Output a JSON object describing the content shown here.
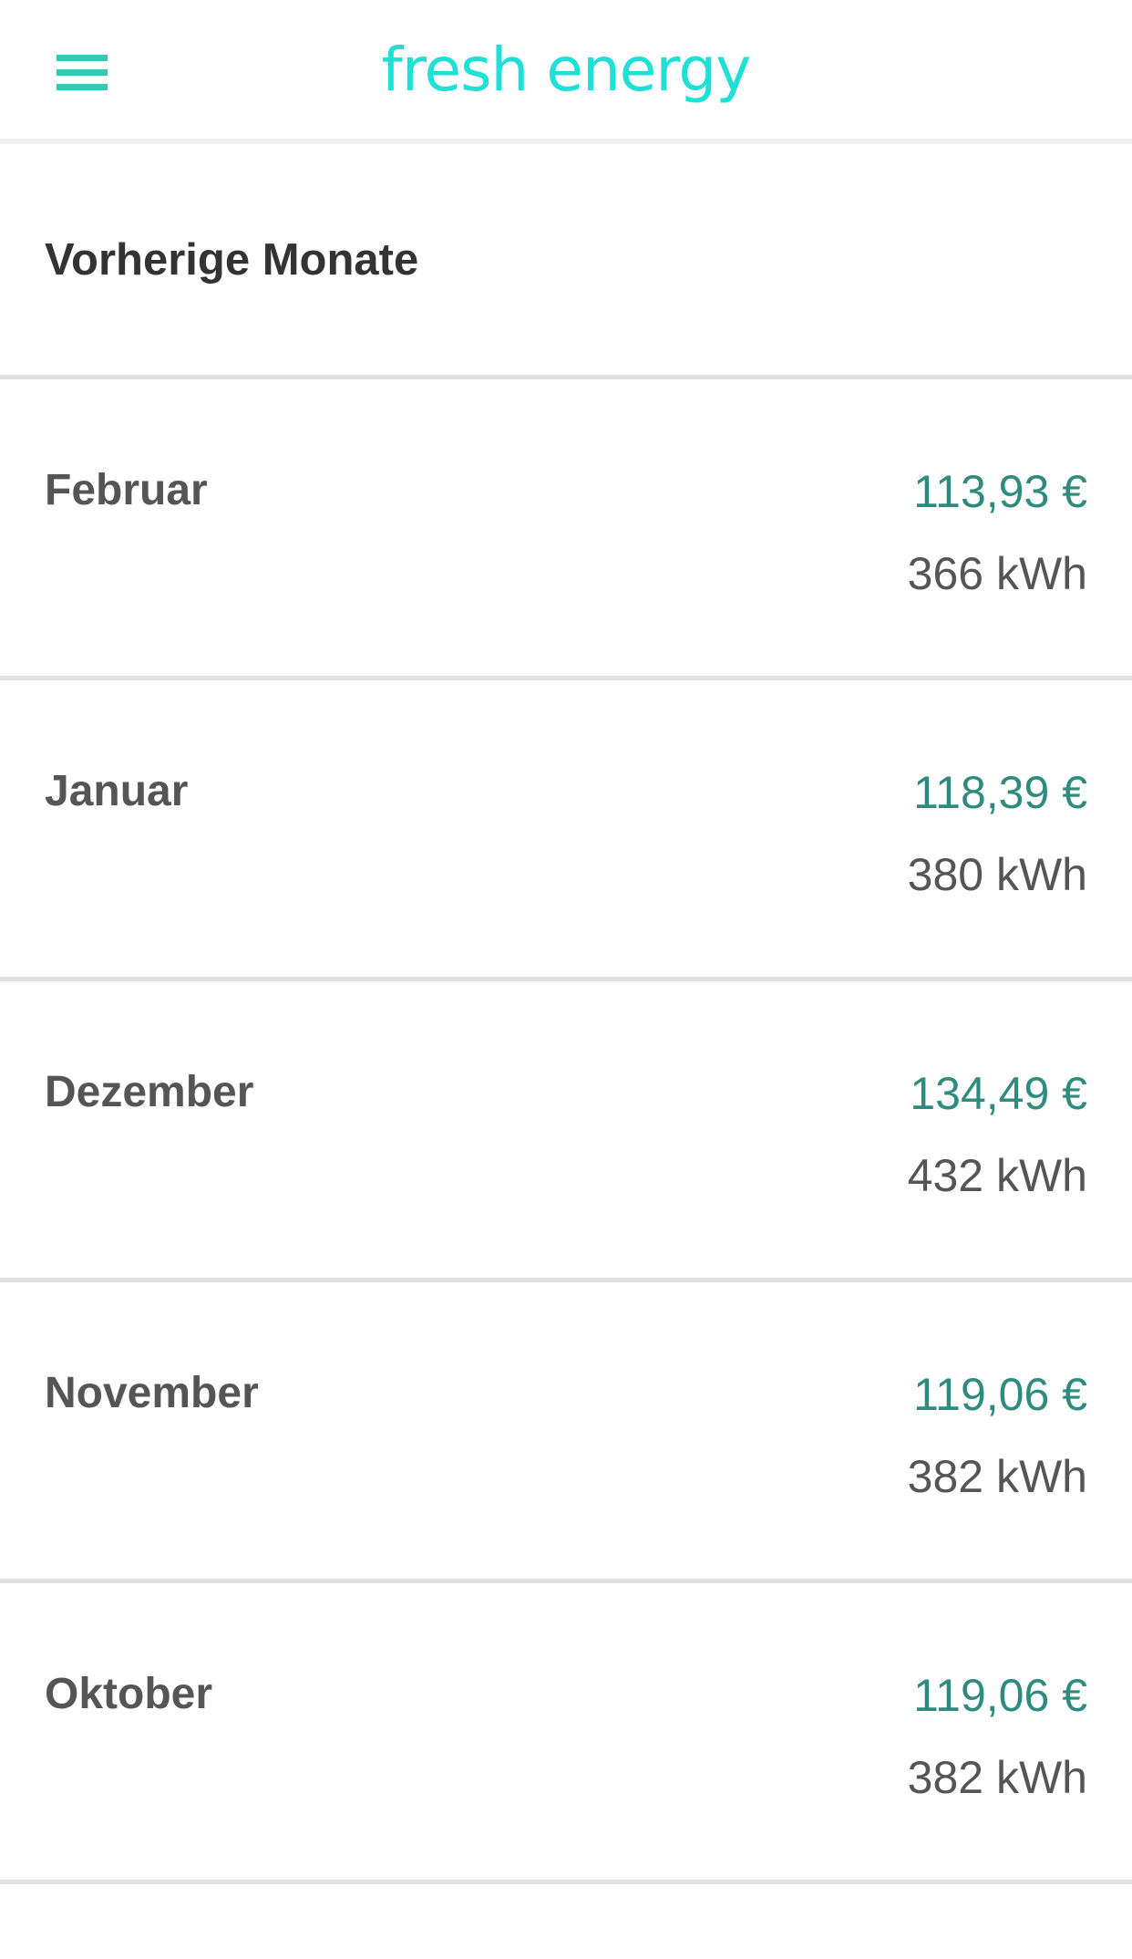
{
  "header": {
    "logo": "fresh energy",
    "menu_icon": "hamburger-menu-icon"
  },
  "colors": {
    "brand": "#1de0d6",
    "menu": "#3cc4b4",
    "amount": "#2e8b7e",
    "text": "#555555"
  },
  "section": {
    "title": "Vorherige Monate"
  },
  "months": [
    {
      "name": "Februar",
      "amount": "113,93 €",
      "energy": "366 kWh"
    },
    {
      "name": "Januar",
      "amount": "118,39 €",
      "energy": "380 kWh"
    },
    {
      "name": "Dezember",
      "amount": "134,49 €",
      "energy": "432 kWh"
    },
    {
      "name": "November",
      "amount": "119,06 €",
      "energy": "382 kWh"
    },
    {
      "name": "Oktober",
      "amount": "119,06 €",
      "energy": "382 kWh"
    }
  ]
}
